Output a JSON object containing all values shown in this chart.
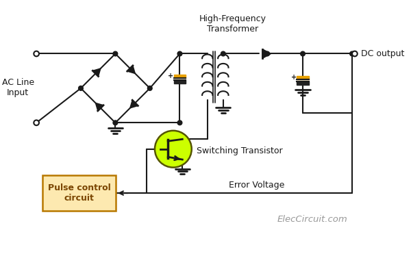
{
  "bg_color": "#ffffff",
  "watermark": "ElecCircuit.com",
  "labels": {
    "ac_line": "AC Line\nInput",
    "transformer": "High-Frequency\nTransformer",
    "dc_output": "DC output",
    "switching_transistor": "Switching Transistor",
    "pulse_control": "Pulse control\ncircuit",
    "error_voltage": "Error Voltage"
  },
  "colors": {
    "line": "#1a1a1a",
    "capacitor_plus": "#e8a000",
    "capacitor_body": "#222222",
    "transistor_circle": "#ccff00",
    "transistor_edge": "#555500",
    "pulse_box_fill": "#fde9b0",
    "pulse_box_edge": "#b87800",
    "pulse_text": "#7a4500"
  },
  "layout": {
    "figw": 6.0,
    "figh": 3.74,
    "dpi": 100
  }
}
